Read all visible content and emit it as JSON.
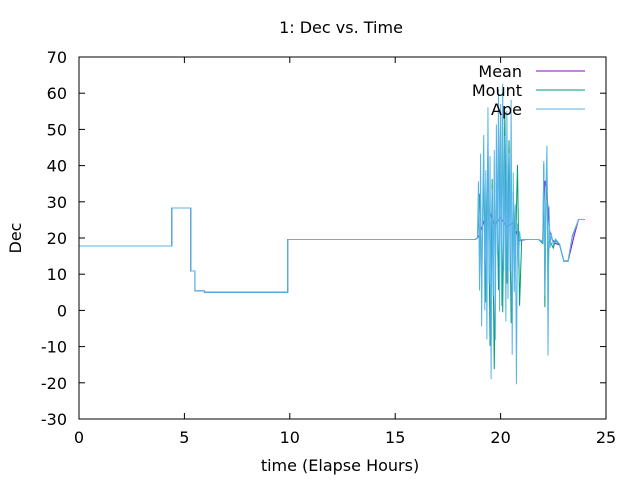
{
  "chart_data": {
    "type": "line",
    "title": "1: Dec vs. Time",
    "xlabel": "time (Elapse Hours)",
    "ylabel": "Dec",
    "xlim": [
      0,
      25
    ],
    "ylim": [
      -30,
      70
    ],
    "xticks": [
      0,
      5,
      10,
      15,
      20,
      25
    ],
    "xtick_labels": [
      "0",
      "5",
      "10",
      "15",
      "20",
      "25"
    ],
    "yticks": [
      -30,
      -20,
      -10,
      0,
      10,
      20,
      30,
      40,
      50,
      60,
      70
    ],
    "ytick_labels": [
      "-30",
      "-20",
      "-10",
      "0",
      "10",
      "20",
      "30",
      "40",
      "50",
      "60",
      "70"
    ],
    "legend_position": "top-right",
    "series": [
      {
        "name": "Mean",
        "color": "#9400d3",
        "x": [
          0,
          4.4,
          4.4,
          5.3,
          5.3,
          5.5,
          5.5,
          5.95,
          5.95,
          9.9,
          9.9,
          18.8,
          18.9,
          19.05,
          19.2,
          19.45,
          19.7,
          20.0,
          20.3,
          20.6,
          20.9,
          21.2,
          21.8,
          22.0,
          22.1,
          22.2,
          22.3,
          22.45,
          22.6,
          22.8,
          23.0,
          23.2,
          23.5,
          23.7,
          24.0
        ],
        "y": [
          17.8,
          17.8,
          28.3,
          28.3,
          10.9,
          10.9,
          5.4,
          5.4,
          5.0,
          5.0,
          19.6,
          19.6,
          20.0,
          21.6,
          24.5,
          27.9,
          23.5,
          25.7,
          23.1,
          24.2,
          19.3,
          19.6,
          19.6,
          19.0,
          35.8,
          32.9,
          22.5,
          19.6,
          18.5,
          18.1,
          13.6,
          13.6,
          20.9,
          25.1,
          25.1
        ]
      },
      {
        "name": "Mount",
        "color": "#009e73",
        "x": [
          0,
          4.4,
          4.4,
          5.3,
          5.3,
          5.5,
          5.5,
          5.95,
          5.95,
          9.9,
          9.9,
          18.8,
          18.9,
          19.0,
          19.1,
          19.2,
          19.3,
          19.4,
          19.5,
          19.6,
          19.7,
          19.8,
          19.9,
          20.0,
          20.1,
          20.2,
          20.3,
          20.4,
          20.5,
          20.6,
          20.7,
          20.8,
          20.9,
          21.0,
          21.1,
          21.2,
          21.8,
          22.0,
          22.05,
          22.1,
          22.15,
          22.2,
          22.25,
          22.3,
          22.4,
          22.5,
          22.6,
          22.8,
          23.0,
          23.2,
          23.4,
          23.7,
          24.0
        ],
        "y": [
          17.8,
          17.8,
          28.3,
          28.3,
          10.9,
          10.9,
          5.4,
          5.4,
          5.0,
          5.0,
          19.6,
          19.6,
          20.0,
          32.2,
          7.3,
          41.3,
          2.2,
          46.3,
          -9.8,
          36.3,
          -16.2,
          41.7,
          5.6,
          55.3,
          -0.5,
          54.8,
          7.4,
          47.0,
          -3.5,
          32.8,
          14.4,
          40.2,
          1.3,
          19.6,
          19.6,
          19.6,
          19.6,
          18.5,
          40.5,
          0.9,
          30.4,
          40.2,
          8.6,
          20.3,
          18.4,
          17.2,
          19.3,
          18.1,
          13.6,
          13.6,
          20.5,
          25.1,
          25.1
        ]
      },
      {
        "name": "Ape",
        "color": "#56b4e9",
        "x": [
          0,
          4.4,
          4.4,
          5.3,
          5.3,
          5.5,
          5.5,
          5.95,
          5.95,
          9.9,
          9.9,
          18.8,
          18.9,
          18.95,
          19.0,
          19.05,
          19.1,
          19.15,
          19.2,
          19.25,
          19.3,
          19.35,
          19.4,
          19.45,
          19.5,
          19.55,
          19.6,
          19.65,
          19.7,
          19.75,
          19.8,
          19.85,
          19.9,
          19.95,
          20.0,
          20.05,
          20.1,
          20.15,
          20.2,
          20.25,
          20.3,
          20.35,
          20.4,
          20.45,
          20.5,
          20.55,
          20.6,
          20.65,
          20.7,
          20.75,
          20.8,
          20.85,
          20.9,
          20.95,
          21.0,
          21.1,
          21.2,
          21.8,
          22.0,
          22.05,
          22.1,
          22.15,
          22.2,
          22.25,
          22.3,
          22.35,
          22.4,
          22.5,
          22.6,
          22.8,
          23.0,
          23.2,
          23.4,
          23.7,
          24.0
        ],
        "y": [
          17.8,
          17.8,
          28.3,
          28.3,
          10.9,
          10.9,
          5.4,
          5.4,
          5.0,
          5.0,
          19.6,
          19.6,
          20.0,
          35.6,
          5.5,
          43.3,
          -4.4,
          28.4,
          48.5,
          0.0,
          38.7,
          -8.0,
          56.1,
          7.3,
          42.6,
          -19.0,
          33.6,
          4.0,
          44.3,
          -8.2,
          51.4,
          15.4,
          61.1,
          -0.3,
          57.0,
          1.2,
          62.6,
          11.0,
          48.2,
          -3.1,
          55.2,
          3.2,
          43.4,
          10.7,
          58.2,
          -12.3,
          38.1,
          5.0,
          29.3,
          -20.4,
          24.0,
          12.3,
          21.9,
          19.2,
          19.6,
          19.6,
          19.6,
          19.6,
          18.9,
          41.3,
          4.1,
          33.9,
          45.5,
          -12.5,
          28.7,
          17.3,
          21.4,
          18.1,
          19.7,
          18.3,
          13.7,
          13.7,
          20.2,
          25.1,
          25.1
        ]
      }
    ]
  }
}
